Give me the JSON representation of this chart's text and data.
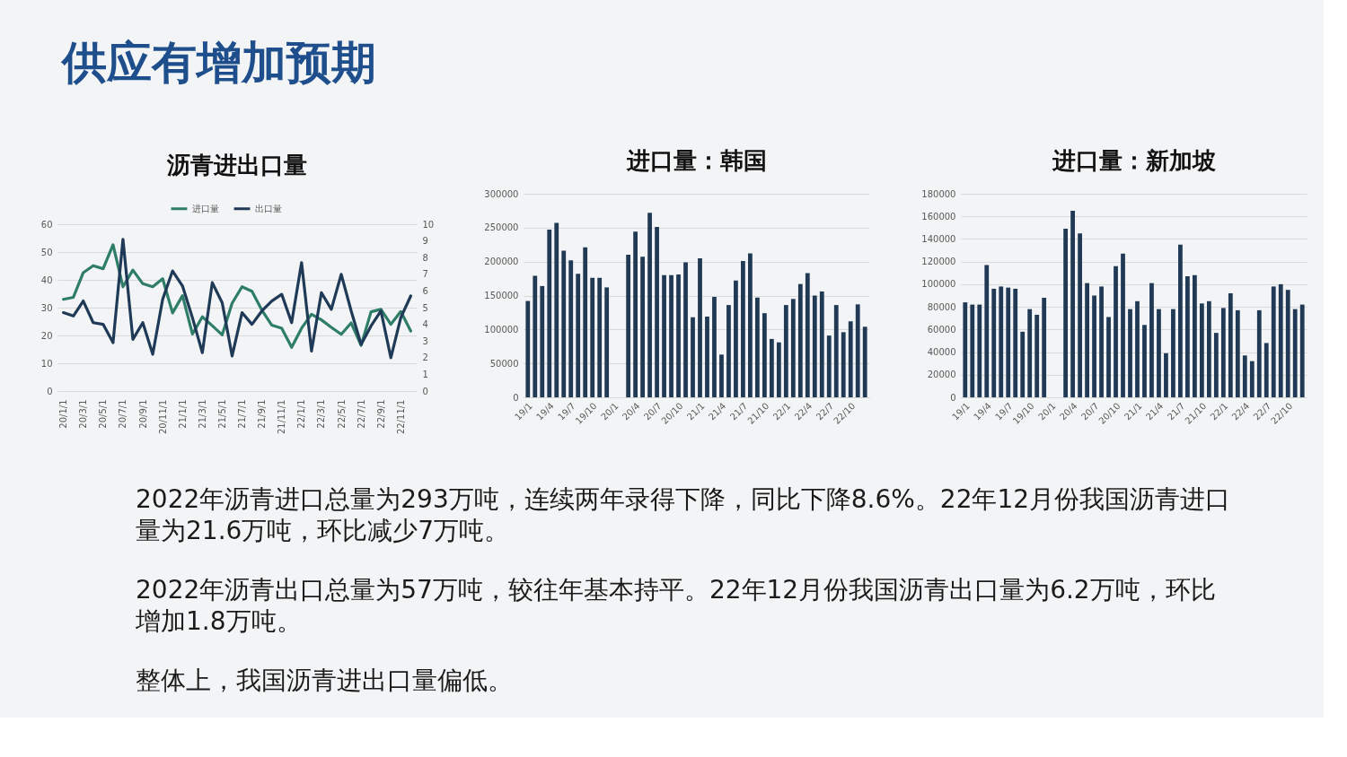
{
  "chart_data": [
    {
      "type": "other",
      "title": "供应有增加预期"
    },
    {
      "type": "line",
      "title": "沥青进出口量",
      "categories": [
        "20/1/1",
        null,
        "20/3/1",
        null,
        "20/5/1",
        null,
        "20/7/1",
        null,
        "20/9/1",
        null,
        "20/11/1",
        null,
        "21/1/1",
        null,
        "21/3/1",
        null,
        "21/5/1",
        null,
        "21/7/1",
        null,
        "21/9/1",
        null,
        "21/11/1",
        null,
        "22/1/1",
        null,
        "22/3/1",
        null,
        "22/5/1",
        null,
        "22/7/1",
        null,
        "22/9/1",
        null,
        "22/11/1",
        null
      ],
      "series": [
        {
          "name": "进口量",
          "color": "#2e7d69",
          "values": [
            33.0,
            33.7,
            42.6,
            45.1,
            44.0,
            52.6,
            37.5,
            43.5,
            38.6,
            37.5,
            40.4,
            28.1,
            34.3,
            20.5,
            26.7,
            23.5,
            20.2,
            31.6,
            37.5,
            35.9,
            29.1,
            23.7,
            22.6,
            15.7,
            22.6,
            27.6,
            25.6,
            22.9,
            20.4,
            24.5,
            16.4,
            28.5,
            29.4,
            24.0,
            28.6,
            21.6
          ]
        },
        {
          "name": "出口量",
          "color": "#1f3a57",
          "axis": "y2",
          "values": [
            4.7,
            4.5,
            5.4,
            4.1,
            4.0,
            2.9,
            9.1,
            3.1,
            4.1,
            2.2,
            5.5,
            7.2,
            6.3,
            4.4,
            2.3,
            6.5,
            5.3,
            2.1,
            4.7,
            4.0,
            4.8,
            5.4,
            5.8,
            4.1,
            7.7,
            2.4,
            5.9,
            4.9,
            7.0,
            4.8,
            2.8,
            3.9,
            4.8,
            2.0,
            4.4,
            5.7
          ]
        }
      ],
      "ylim": [
        0,
        60
      ],
      "yticks": [
        0,
        10,
        20,
        30,
        40,
        50,
        60
      ],
      "y2lim": [
        0,
        10
      ],
      "y2ticks": [
        0,
        1,
        2,
        3,
        4,
        5,
        6,
        7,
        8,
        9,
        10
      ],
      "grid": "y",
      "legend": "top",
      "line_style": "solid"
    },
    {
      "type": "bar",
      "title": "进口量：韩国",
      "categories": [
        "19/1",
        null,
        null,
        "19/4",
        null,
        null,
        "19/7",
        null,
        null,
        "19/10",
        null,
        null,
        "20/1",
        null,
        null,
        "20/4",
        null,
        null,
        "20/7",
        null,
        null,
        "20/10",
        null,
        null,
        "21/1",
        null,
        null,
        "21/4",
        null,
        null,
        "21/7",
        null,
        null,
        "21/10",
        null,
        null,
        "22/1",
        null,
        null,
        "22/4",
        null,
        null,
        "22/7",
        null,
        null,
        "22/10",
        null,
        null
      ],
      "values": [
        142000,
        179000,
        164000,
        247000,
        257000,
        216000,
        202000,
        182000,
        221000,
        176000,
        176000,
        162000,
        null,
        null,
        210000,
        244000,
        207000,
        272000,
        251000,
        180000,
        180000,
        181000,
        199000,
        118000,
        205000,
        119000,
        148000,
        63000,
        136000,
        172000,
        201000,
        212000,
        147000,
        124000,
        86000,
        81000,
        136000,
        145000,
        167000,
        183000,
        150000,
        156000,
        91000,
        136000,
        96000,
        112000,
        137000,
        104000
      ],
      "color": "#203a56",
      "ylim": [
        0,
        300000
      ],
      "yticks": [
        0,
        50000,
        100000,
        150000,
        200000,
        250000,
        300000
      ],
      "grid": "y"
    },
    {
      "type": "bar",
      "title": "进口量：新加坡",
      "categories": [
        "19/1",
        null,
        null,
        "19/4",
        null,
        null,
        "19/7",
        null,
        null,
        "19/10",
        null,
        null,
        "20/1",
        null,
        null,
        "20/4",
        null,
        null,
        "20/7",
        null,
        null,
        "20/10",
        null,
        null,
        "21/1",
        null,
        null,
        "21/4",
        null,
        null,
        "21/7",
        null,
        null,
        "21/10",
        null,
        null,
        "22/1",
        null,
        null,
        "22/4",
        null,
        null,
        "22/7",
        null,
        null,
        "22/10",
        null,
        null
      ],
      "values": [
        84000,
        82000,
        82000,
        117000,
        96000,
        98000,
        97000,
        96000,
        58000,
        78000,
        73000,
        88000,
        null,
        null,
        149000,
        165000,
        145000,
        101000,
        90000,
        98000,
        71000,
        116000,
        127000,
        78000,
        85000,
        64000,
        101000,
        78000,
        39000,
        78000,
        135000,
        107000,
        108000,
        83000,
        85000,
        57000,
        79000,
        92000,
        77000,
        37000,
        32000,
        77000,
        48000,
        98000,
        100000,
        95000,
        78000,
        82000
      ],
      "color": "#203a56",
      "ylim": [
        0,
        180000
      ],
      "yticks": [
        0,
        20000,
        40000,
        60000,
        80000,
        100000,
        120000,
        140000,
        160000,
        180000
      ],
      "grid": "y"
    },
    {
      "type": "other",
      "annotations": [
        "2022年沥青进口总量为293万吨，连续两年录得下降，同比下降8.6%。22年12月份我国沥青进口量为21.6万吨，环比减少7万吨。",
        "2022年沥青出口总量为57万吨，较往年基本持平。22年12月份我国沥青出口量为6.2万吨，环比增加1.8万吨。",
        "整体上，我国沥青进出口量偏低。"
      ]
    }
  ]
}
